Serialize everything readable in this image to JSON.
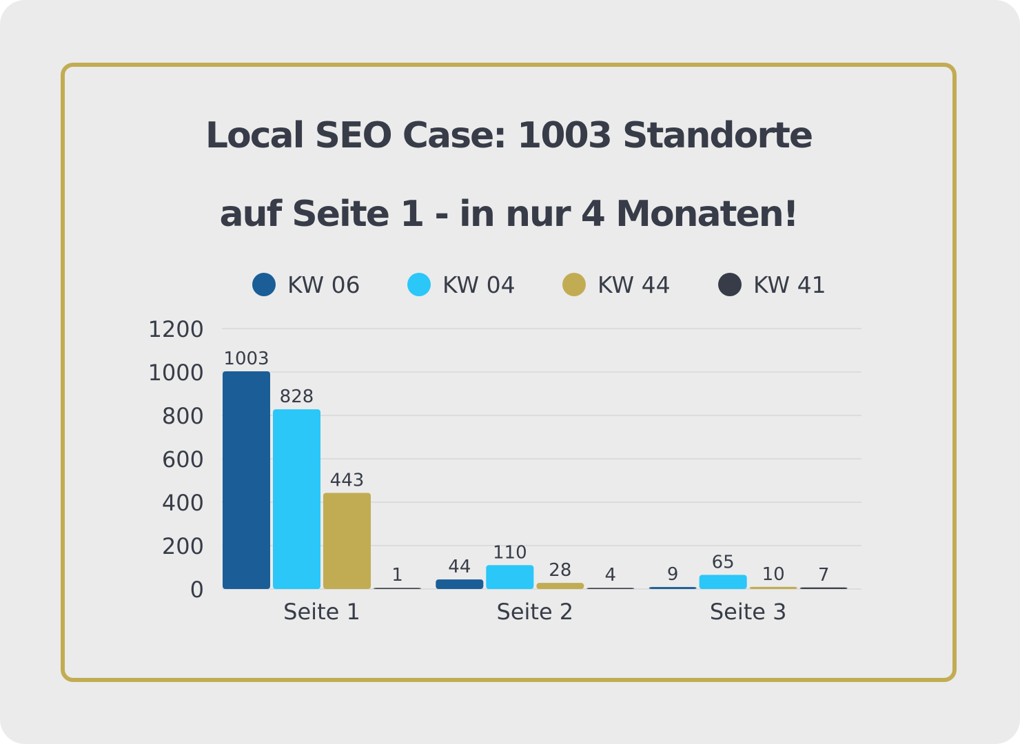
{
  "title": {
    "line1": "Local SEO Case: 1003 Standorte",
    "line2": "auf Seite 1 - in nur 4 Monaten!"
  },
  "colors": {
    "background": "#ebebeb",
    "frame": "#c2ac53",
    "text": "#373c48",
    "grid": "#d2d2d2"
  },
  "chart_data": {
    "type": "bar",
    "title": "Local SEO Case: 1003 Standorte auf Seite 1 - in nur 4 Monaten!",
    "xlabel": "",
    "ylabel": "",
    "categories": [
      "Seite 1",
      "Seite 2",
      "Seite 3"
    ],
    "series": [
      {
        "name": "KW 06",
        "color": "#1a5d97",
        "values": [
          1003,
          44,
          9
        ]
      },
      {
        "name": "KW 04",
        "color": "#2ac7f8",
        "values": [
          828,
          110,
          65
        ]
      },
      {
        "name": "KW 44",
        "color": "#c2ac53",
        "values": [
          443,
          28,
          10
        ]
      },
      {
        "name": "KW 41",
        "color": "#373c48",
        "values": [
          1,
          4,
          7
        ]
      }
    ],
    "ylim": [
      0,
      1200
    ],
    "yticks": [
      0,
      200,
      400,
      600,
      800,
      1000,
      1200
    ],
    "grid": true,
    "legend": "top",
    "data_labels": true
  }
}
